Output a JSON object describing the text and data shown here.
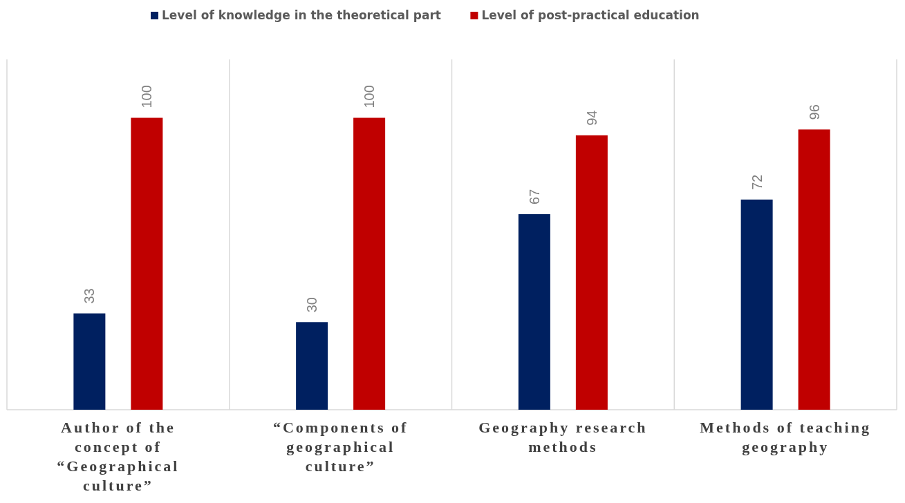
{
  "chart_data": {
    "type": "bar",
    "categories": [
      "Author of the concept of “Geographical culture”",
      "“Components of geographical culture”",
      "Geography research methods",
      "Methods of teaching geography"
    ],
    "series": [
      {
        "name": "Level of knowledge in the theoretical part",
        "color": "#002060",
        "values": [
          33,
          30,
          67,
          72
        ]
      },
      {
        "name": "Level of post-practical education",
        "color": "#c00000",
        "values": [
          100,
          100,
          94,
          96
        ]
      }
    ],
    "ylim": [
      0,
      120
    ],
    "data_labels": true,
    "grid": "x",
    "legend": "top",
    "tick_labels": "x"
  }
}
